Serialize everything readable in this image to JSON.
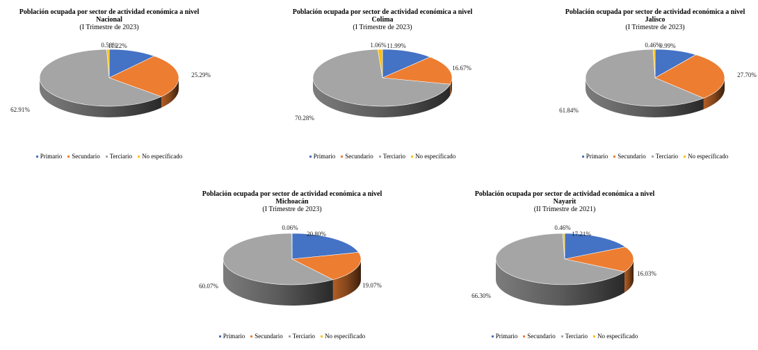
{
  "colors": {
    "Primario": "#4472C4",
    "Secundario": "#ED7D31",
    "Terciario": "#A5A5A5",
    "No especificado": "#FFC000"
  },
  "chart_data": [
    {
      "type": "pie",
      "title": "Población ocupada por sector de actividad económica a nivel",
      "region": "Nacional",
      "subtitle": "(I Trimestre de 2023)",
      "categories": [
        "Primario",
        "Secundario",
        "Terciario",
        "No específicado"
      ],
      "values": [
        11.22,
        25.29,
        62.91,
        0.58
      ],
      "value_labels": [
        "11.22%",
        "25.29%",
        "62.91%",
        "0.58%"
      ],
      "legend": [
        "Primario",
        "Secundario",
        "Terciario",
        "No específicado"
      ]
    },
    {
      "type": "pie",
      "title": "Población ocupada por sector de actividad económica a nivel",
      "region": "Colima",
      "subtitle": "(I Trimestre de 2023)",
      "categories": [
        "Primario",
        "Secundario",
        "Terciario",
        "No específicado"
      ],
      "values": [
        11.99,
        16.67,
        70.28,
        1.06
      ],
      "value_labels": [
        "11.99%",
        "16.67%",
        "70.28%",
        "1.06%"
      ],
      "legend": [
        "Primario",
        "Secundario",
        "Terciario",
        "No específicado"
      ]
    },
    {
      "type": "pie",
      "title": "Población ocupada por sector de actividad económica a nivel",
      "region": "Jalisco",
      "subtitle": "(I Trimestre de 2023)",
      "categories": [
        "Primario",
        "Secundario",
        "Terciario",
        "No específicado"
      ],
      "values": [
        9.99,
        27.7,
        61.84,
        0.46
      ],
      "value_labels": [
        "9.99%",
        "27.70%",
        "61.84%",
        "0.46%"
      ],
      "legend": [
        "Primario",
        "Secundario",
        "Terciario",
        "No específicado"
      ]
    },
    {
      "type": "pie",
      "title": "Población ocupada por sector de actividad económica a nivel",
      "region": "Michoacán",
      "subtitle": "(I Trimestre de 2023)",
      "categories": [
        "Primario",
        "Secundario",
        "Terciario",
        "No específicado"
      ],
      "values": [
        20.8,
        19.07,
        60.07,
        0.06
      ],
      "value_labels": [
        "20.80%",
        "19.07%",
        "60.07%",
        "0.06%"
      ],
      "legend": [
        "Primario",
        "Secundario",
        "Terciario",
        "No específicado"
      ]
    },
    {
      "type": "pie",
      "title": "Población ocupada por sector de actividad económica a nivel",
      "region": "Nayarit",
      "subtitle": "(II Trimestre de 2021)",
      "categories": [
        "Primario",
        "Secundario",
        "Terciario",
        "No específicado"
      ],
      "values": [
        17.21,
        16.03,
        66.3,
        0.46
      ],
      "value_labels": [
        "17.21%",
        "16.03%",
        "66.30%",
        "0.46%"
      ],
      "legend": [
        "Primario",
        "Secundario",
        "Terciario",
        "No específicado"
      ]
    }
  ]
}
